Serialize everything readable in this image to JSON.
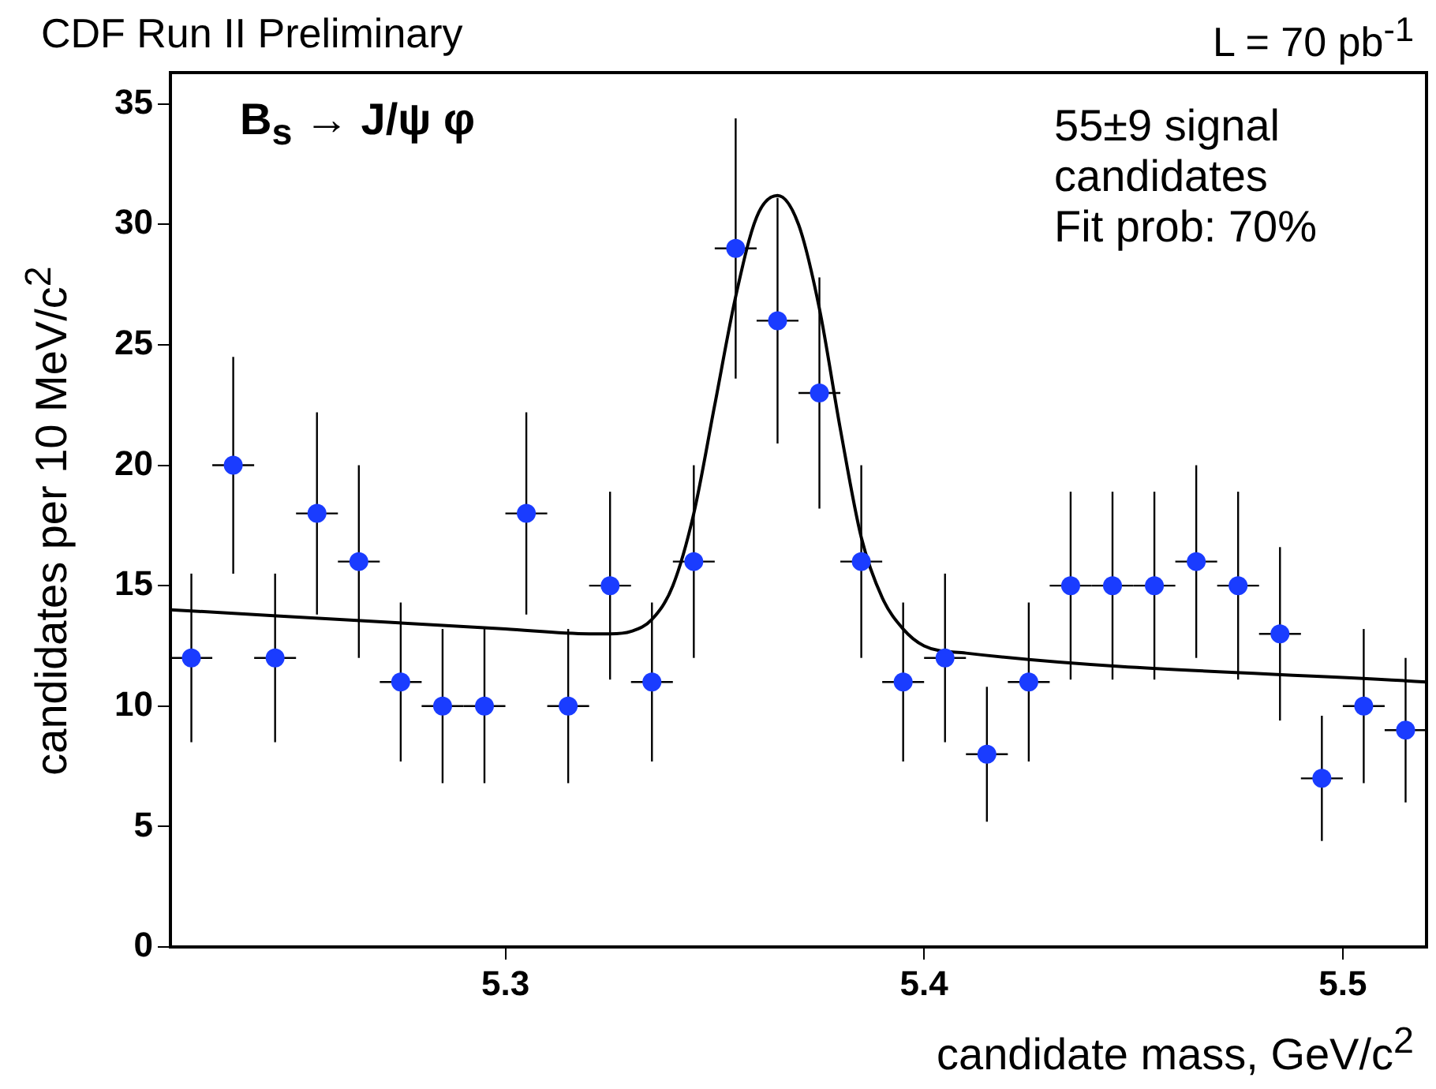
{
  "chart_data": {
    "type": "scatter",
    "title": "CDF Run II Preliminary",
    "subtitle": "L = 70 pb$^{-1}$",
    "xlabel": "candidate mass, GeV/c$^{2}$",
    "ylabel": "candidates per 10 MeV/c$^{2}$",
    "annotations": [
      "B$_{s}$ → J/ψ φ",
      "55±9 signal candidates",
      "Fit prob: 70%"
    ],
    "xlim": [
      5.22,
      5.52
    ],
    "xticks": [
      5.3,
      5.4,
      5.5
    ],
    "ylim": [
      0,
      36.3
    ],
    "yticks": [
      0,
      5,
      10,
      15,
      20,
      25,
      30,
      35
    ],
    "grid": false,
    "legend": false,
    "marker": "circle",
    "series": [
      {
        "color": "#1a3cff",
        "x": [
          5.225,
          5.235,
          5.245,
          5.255,
          5.265,
          5.275,
          5.285,
          5.295,
          5.305,
          5.315,
          5.325,
          5.335,
          5.345,
          5.355,
          5.365,
          5.375,
          5.385,
          5.395,
          5.405,
          5.415,
          5.425,
          5.435,
          5.445,
          5.455,
          5.465,
          5.475,
          5.485,
          5.495,
          5.505,
          5.515
        ],
        "values": [
          12,
          20,
          12,
          18,
          16,
          11,
          10,
          10,
          18,
          10,
          15,
          11,
          16,
          29,
          26,
          23,
          16,
          11,
          12,
          8,
          11,
          15,
          15,
          15,
          16,
          15,
          13,
          7,
          10,
          9
        ],
        "errors": [
          3.5,
          4.5,
          3.5,
          4.2,
          4,
          3.3,
          3.2,
          3.2,
          4.2,
          3.2,
          3.9,
          3.3,
          4,
          5.4,
          5.1,
          4.8,
          4,
          3.3,
          3.5,
          2.8,
          3.3,
          3.9,
          3.9,
          3.9,
          4,
          3.9,
          3.6,
          2.6,
          3.2,
          3
        ],
        "xerrors": [
          0.005,
          0.005,
          0.005,
          0.005,
          0.005,
          0.005,
          0.005,
          0.005,
          0.005,
          0.005,
          0.005,
          0.005,
          0.005,
          0.005,
          0.005,
          0.005,
          0.005,
          0.005,
          0.005,
          0.005,
          0.005,
          0.005,
          0.005,
          0.005,
          0.005,
          0.005,
          0.005,
          0.005,
          0.005,
          0.005
        ]
      },
      {
        "type": "line",
        "color": "#000000",
        "marker": "none",
        "x": [
          5.22,
          5.3,
          5.32,
          5.325,
          5.33,
          5.335,
          5.34,
          5.345,
          5.35,
          5.355,
          5.36,
          5.365,
          5.37,
          5.375,
          5.38,
          5.385,
          5.39,
          5.395,
          5.4,
          5.41,
          5.52
        ],
        "values": [
          14,
          13.2,
          13,
          13,
          13.1,
          13.6,
          15,
          18,
          22.5,
          27,
          30.3,
          31.2,
          30,
          26.5,
          21.5,
          17,
          14.5,
          13.2,
          12.5,
          12.2,
          11
        ]
      }
    ]
  }
}
